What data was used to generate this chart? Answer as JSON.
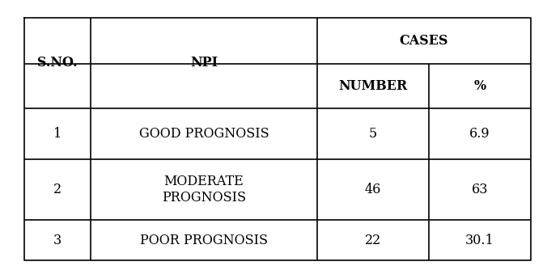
{
  "col_headers": [
    "S.NO.",
    "NPI",
    "CASES"
  ],
  "sub_headers": [
    "NUMBER",
    "%"
  ],
  "rows": [
    [
      "1",
      "GOOD PROGNOSIS",
      "5",
      "6.9"
    ],
    [
      "2",
      "MODERATE\nPROGNOSIS",
      "46",
      "63"
    ],
    [
      "3",
      "POOR PROGNOSIS",
      "22",
      "30.1"
    ]
  ],
  "bg_color": "#ffffff",
  "line_color": "#000000",
  "text_color": "#000000",
  "font_size": 11.5
}
